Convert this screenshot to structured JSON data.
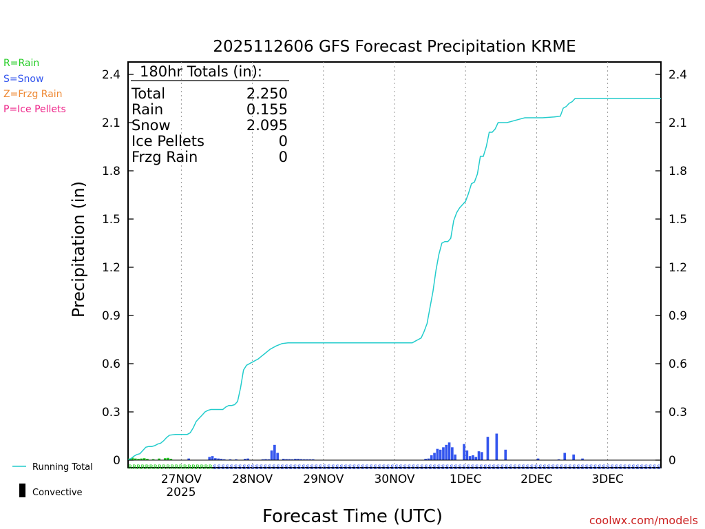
{
  "legend": {
    "rain": "R=Rain",
    "snow": "S=Snow",
    "frzg_rain": "Z=Frzg Rain",
    "ice_pellets": "P=Ice Pellets",
    "running_total": "Running Total",
    "convective": "Convective"
  },
  "totals": {
    "header": "180hr Totals (in):",
    "rows": [
      {
        "label": "Total",
        "value": "2.250"
      },
      {
        "label": "Rain",
        "value": "0.155"
      },
      {
        "label": "Snow",
        "value": "2.095"
      },
      {
        "label": "Ice Pellets",
        "value": "0"
      },
      {
        "label": "Frzg Rain",
        "value": "0"
      }
    ]
  },
  "watermark": "coolwx.com/models",
  "colors": {
    "rain": "#22cc22",
    "snow": "#3355ee",
    "frzg_rain": "#ee8833",
    "ice_pellets": "#ee2288",
    "running_total": "#22cccc"
  },
  "chart_data": {
    "type": "bar",
    "title": "2025112606 GFS Forecast Precipitation KRME",
    "xlabel": "Forecast Time (UTC)",
    "ylabel": "Precipitation (in)",
    "ylim": [
      0,
      2.4
    ],
    "yticks": [
      "0",
      "0.3",
      "0.6",
      "0.9",
      "1.2",
      "1.5",
      "1.8",
      "2.1",
      "2.4"
    ],
    "xlim_hours": [
      0,
      180
    ],
    "day_ticks": [
      {
        "label": "27NOV",
        "hour": 18
      },
      {
        "label": "28NOV",
        "hour": 42
      },
      {
        "label": "29NOV",
        "hour": 66
      },
      {
        "label": "30NOV",
        "hour": 90
      },
      {
        "label": "1DEC",
        "hour": 114
      },
      {
        "label": "2DEC",
        "hour": 138
      },
      {
        "label": "3DEC",
        "hour": 162
      }
    ],
    "year_label": "2025",
    "series": [
      {
        "name": "Running Total",
        "points": [
          [
            0,
            0
          ],
          [
            1,
            0.01
          ],
          [
            2,
            0.025
          ],
          [
            3,
            0.035
          ],
          [
            4,
            0.04
          ],
          [
            5,
            0.06
          ],
          [
            6,
            0.08
          ],
          [
            7,
            0.085
          ],
          [
            8,
            0.085
          ],
          [
            9,
            0.09
          ],
          [
            10,
            0.1
          ],
          [
            11,
            0.105
          ],
          [
            12,
            0.12
          ],
          [
            13,
            0.14
          ],
          [
            14,
            0.155
          ],
          [
            16,
            0.16
          ],
          [
            18,
            0.16
          ],
          [
            20,
            0.16
          ],
          [
            21,
            0.17
          ],
          [
            22,
            0.2
          ],
          [
            23,
            0.24
          ],
          [
            24,
            0.26
          ],
          [
            25,
            0.28
          ],
          [
            26,
            0.3
          ],
          [
            27,
            0.31
          ],
          [
            28,
            0.315
          ],
          [
            30,
            0.315
          ],
          [
            32,
            0.315
          ],
          [
            33,
            0.33
          ],
          [
            34,
            0.34
          ],
          [
            35,
            0.34
          ],
          [
            36,
            0.345
          ],
          [
            37,
            0.365
          ],
          [
            38,
            0.45
          ],
          [
            39,
            0.56
          ],
          [
            40,
            0.59
          ],
          [
            42,
            0.61
          ],
          [
            44,
            0.63
          ],
          [
            46,
            0.66
          ],
          [
            48,
            0.69
          ],
          [
            50,
            0.71
          ],
          [
            52,
            0.725
          ],
          [
            54,
            0.73
          ],
          [
            60,
            0.73
          ],
          [
            66,
            0.73
          ],
          [
            72,
            0.73
          ],
          [
            78,
            0.73
          ],
          [
            84,
            0.73
          ],
          [
            90,
            0.73
          ],
          [
            96,
            0.73
          ],
          [
            97,
            0.74
          ],
          [
            98,
            0.75
          ],
          [
            99,
            0.76
          ],
          [
            100,
            0.8
          ],
          [
            101,
            0.85
          ],
          [
            102,
            0.95
          ],
          [
            103,
            1.05
          ],
          [
            104,
            1.18
          ],
          [
            105,
            1.28
          ],
          [
            106,
            1.35
          ],
          [
            107,
            1.36
          ],
          [
            108,
            1.36
          ],
          [
            109,
            1.38
          ],
          [
            110,
            1.49
          ],
          [
            111,
            1.54
          ],
          [
            112,
            1.57
          ],
          [
            113,
            1.59
          ],
          [
            114,
            1.61
          ],
          [
            115,
            1.66
          ],
          [
            116,
            1.72
          ],
          [
            117,
            1.73
          ],
          [
            118,
            1.78
          ],
          [
            119,
            1.89
          ],
          [
            120,
            1.89
          ],
          [
            121,
            1.95
          ],
          [
            122,
            2.04
          ],
          [
            123,
            2.04
          ],
          [
            124,
            2.06
          ],
          [
            125,
            2.1
          ],
          [
            127,
            2.1
          ],
          [
            128,
            2.1
          ],
          [
            130,
            2.11
          ],
          [
            131,
            2.115
          ],
          [
            132,
            2.12
          ],
          [
            134,
            2.13
          ],
          [
            136,
            2.13
          ],
          [
            140,
            2.13
          ],
          [
            144,
            2.135
          ],
          [
            146,
            2.14
          ],
          [
            147,
            2.19
          ],
          [
            148,
            2.2
          ],
          [
            149,
            2.22
          ],
          [
            150,
            2.23
          ],
          [
            151,
            2.25
          ],
          [
            154,
            2.25
          ],
          [
            160,
            2.25
          ],
          [
            170,
            2.25
          ],
          [
            180,
            2.25
          ]
        ]
      },
      {
        "name": "Rain",
        "bars": [
          [
            0.5,
            0.01
          ],
          [
            1.5,
            0.015
          ],
          [
            2.5,
            0.01
          ],
          [
            3.5,
            0.008
          ],
          [
            4.5,
            0.01
          ],
          [
            5.5,
            0.012
          ],
          [
            6.5,
            0.008
          ],
          [
            8.5,
            0.006
          ],
          [
            10.5,
            0.01
          ],
          [
            12.5,
            0.012
          ],
          [
            13.5,
            0.014
          ],
          [
            14.5,
            0.008
          ]
        ]
      },
      {
        "name": "Snow",
        "bars": [
          [
            20.5,
            0.01
          ],
          [
            27.5,
            0.02
          ],
          [
            28.5,
            0.025
          ],
          [
            29.5,
            0.012
          ],
          [
            30.5,
            0.01
          ],
          [
            31.5,
            0.008
          ],
          [
            32.5,
            0.005
          ],
          [
            34.5,
            0.005
          ],
          [
            36.5,
            0.005
          ],
          [
            39.5,
            0.008
          ],
          [
            40.5,
            0.01
          ],
          [
            45.5,
            0.005
          ],
          [
            46.5,
            0.006
          ],
          [
            47.5,
            0.005
          ],
          [
            48.5,
            0.06
          ],
          [
            49.5,
            0.095
          ],
          [
            50.5,
            0.045
          ],
          [
            52.5,
            0.008
          ],
          [
            53.5,
            0.006
          ],
          [
            54.5,
            0.006
          ],
          [
            55.5,
            0.005
          ],
          [
            56.5,
            0.008
          ],
          [
            57.5,
            0.008
          ],
          [
            58.5,
            0.006
          ],
          [
            59.5,
            0.005
          ],
          [
            60.5,
            0.005
          ],
          [
            61.5,
            0.005
          ],
          [
            62.5,
            0.005
          ],
          [
            100.5,
            0.008
          ],
          [
            101.5,
            0.01
          ],
          [
            102.5,
            0.03
          ],
          [
            103.5,
            0.045
          ],
          [
            104.5,
            0.07
          ],
          [
            105.5,
            0.065
          ],
          [
            106.5,
            0.08
          ],
          [
            107.5,
            0.095
          ],
          [
            108.5,
            0.11
          ],
          [
            109.5,
            0.08
          ],
          [
            110.5,
            0.035
          ],
          [
            113.5,
            0.1
          ],
          [
            114.5,
            0.06
          ],
          [
            115.5,
            0.025
          ],
          [
            116.5,
            0.03
          ],
          [
            117.5,
            0.02
          ],
          [
            118.5,
            0.055
          ],
          [
            119.5,
            0.05
          ],
          [
            121.5,
            0.145
          ],
          [
            124.5,
            0.165
          ],
          [
            127.5,
            0.065
          ],
          [
            138.5,
            0.01
          ],
          [
            145.5,
            0.005
          ],
          [
            147.5,
            0.045
          ],
          [
            150.5,
            0.035
          ],
          [
            153.5,
            0.01
          ]
        ]
      }
    ],
    "ptype_strip": "RRRRRRRRRRRRRRRRRRRRSSSSSSSSSSSSSSSSSSSSSSSSSSSSSSSSSSSSSSSSSSSSSSSSSSSSSSSSSSSSSSSSSSSSSSSSSSSSSSSSSSSSSSSSSSSSSSSSSSSSSSSSSS"
  }
}
